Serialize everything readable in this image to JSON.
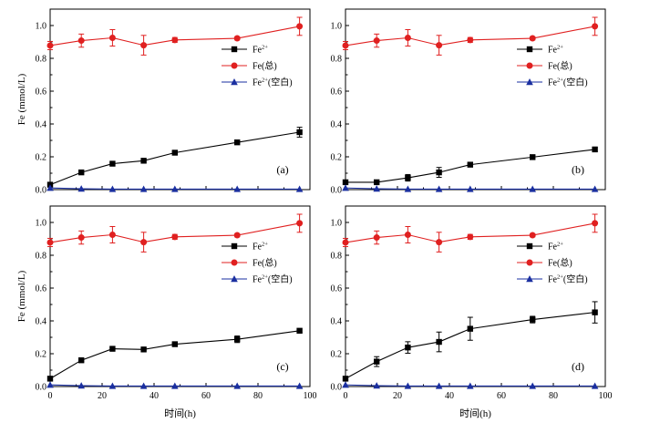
{
  "chart_data": [
    {
      "type": "line",
      "panel_label": "(a)",
      "x": [
        0,
        12,
        24,
        36,
        48,
        72,
        96
      ],
      "series": [
        {
          "name": "Fe2+",
          "color": "#000000",
          "marker": "square",
          "values": [
            0.03,
            0.105,
            0.158,
            0.176,
            0.225,
            0.288,
            0.35
          ],
          "errors": [
            0.005,
            0.008,
            0.008,
            0.008,
            0.008,
            0.01,
            0.03
          ]
        },
        {
          "name": "Fe(总)",
          "color": "#e02020",
          "marker": "circle",
          "values": [
            0.878,
            0.908,
            0.925,
            0.88,
            0.912,
            0.922,
            0.995
          ],
          "errors": [
            0.025,
            0.04,
            0.05,
            0.06,
            0.015,
            0.01,
            0.055
          ]
        },
        {
          "name": "Fe2+(空白)",
          "color": "#1a2fa0",
          "marker": "triangle",
          "values": [
            0.01,
            0.005,
            0.003,
            0.003,
            0.003,
            0.003,
            0.003
          ],
          "errors": [
            0,
            0,
            0,
            0,
            0,
            0,
            0
          ]
        }
      ],
      "xlim": [
        0,
        100
      ],
      "ylim": [
        0,
        1.1
      ],
      "yticks": [
        0.0,
        0.2,
        0.4,
        0.6,
        0.8,
        1.0
      ],
      "ylabel": "Fe (mmol/L)",
      "xlabel": "",
      "legend": "right-middle"
    },
    {
      "type": "line",
      "panel_label": "(b)",
      "x": [
        0,
        12,
        24,
        36,
        48,
        72,
        96
      ],
      "series": [
        {
          "name": "Fe2+",
          "color": "#000000",
          "marker": "square",
          "values": [
            0.045,
            0.045,
            0.072,
            0.105,
            0.152,
            0.198,
            0.245
          ],
          "errors": [
            0.005,
            0.008,
            0.02,
            0.03,
            0.008,
            0.01,
            0.01
          ]
        },
        {
          "name": "Fe(总)",
          "color": "#e02020",
          "marker": "circle",
          "values": [
            0.878,
            0.908,
            0.925,
            0.88,
            0.912,
            0.922,
            0.995
          ],
          "errors": [
            0.025,
            0.04,
            0.05,
            0.06,
            0.015,
            0.01,
            0.055
          ]
        },
        {
          "name": "Fe2+(空白)",
          "color": "#1a2fa0",
          "marker": "triangle",
          "values": [
            0.01,
            0.005,
            0.003,
            0.003,
            0.003,
            0.003,
            0.003
          ],
          "errors": [
            0,
            0,
            0,
            0,
            0,
            0,
            0
          ]
        }
      ],
      "xlim": [
        0,
        100
      ],
      "ylim": [
        0,
        1.1
      ],
      "yticks": [
        0.0,
        0.2,
        0.4,
        0.6,
        0.8,
        1.0
      ],
      "ylabel": "",
      "xlabel": "",
      "legend": "right-middle"
    },
    {
      "type": "line",
      "panel_label": "(c)",
      "x": [
        0,
        12,
        24,
        36,
        48,
        72,
        96
      ],
      "series": [
        {
          "name": "Fe2+",
          "color": "#000000",
          "marker": "square",
          "values": [
            0.048,
            0.16,
            0.23,
            0.226,
            0.258,
            0.288,
            0.34
          ],
          "errors": [
            0.005,
            0.008,
            0.008,
            0.008,
            0.008,
            0.02,
            0.01
          ]
        },
        {
          "name": "Fe(总)",
          "color": "#e02020",
          "marker": "circle",
          "values": [
            0.878,
            0.908,
            0.925,
            0.88,
            0.912,
            0.922,
            0.995
          ],
          "errors": [
            0.025,
            0.04,
            0.05,
            0.06,
            0.015,
            0.01,
            0.055
          ]
        },
        {
          "name": "Fe2+(空白)",
          "color": "#1a2fa0",
          "marker": "triangle",
          "values": [
            0.01,
            0.005,
            0.003,
            0.003,
            0.003,
            0.003,
            0.003
          ],
          "errors": [
            0,
            0,
            0,
            0,
            0,
            0,
            0
          ]
        }
      ],
      "xlim": [
        0,
        100
      ],
      "ylim": [
        0,
        1.1
      ],
      "yticks": [
        0.0,
        0.2,
        0.4,
        0.6,
        0.8,
        1.0
      ],
      "xticks": [
        0,
        20,
        40,
        60,
        80,
        100
      ],
      "ylabel": "Fe (mmol/L)",
      "xlabel": "时间(h)",
      "legend": "right-middle"
    },
    {
      "type": "line",
      "panel_label": "(d)",
      "x": [
        0,
        12,
        24,
        36,
        48,
        72,
        96
      ],
      "series": [
        {
          "name": "Fe2+",
          "color": "#000000",
          "marker": "square",
          "values": [
            0.048,
            0.152,
            0.238,
            0.272,
            0.352,
            0.408,
            0.452
          ],
          "errors": [
            0.005,
            0.03,
            0.035,
            0.06,
            0.07,
            0.02,
            0.065
          ]
        },
        {
          "name": "Fe(总)",
          "color": "#e02020",
          "marker": "circle",
          "values": [
            0.878,
            0.908,
            0.925,
            0.88,
            0.912,
            0.922,
            0.995
          ],
          "errors": [
            0.025,
            0.04,
            0.05,
            0.06,
            0.015,
            0.01,
            0.055
          ]
        },
        {
          "name": "Fe2+(空白)",
          "color": "#1a2fa0",
          "marker": "triangle",
          "values": [
            0.01,
            0.005,
            0.003,
            0.003,
            0.003,
            0.003,
            0.003
          ],
          "errors": [
            0,
            0,
            0,
            0,
            0,
            0,
            0
          ]
        }
      ],
      "xlim": [
        0,
        100
      ],
      "ylim": [
        0,
        1.1
      ],
      "yticks": [
        0.0,
        0.2,
        0.4,
        0.6,
        0.8,
        1.0
      ],
      "xticks": [
        0,
        20,
        40,
        60,
        80,
        100
      ],
      "ylabel": "",
      "xlabel": "时间(h)",
      "legend": "right-middle"
    }
  ]
}
